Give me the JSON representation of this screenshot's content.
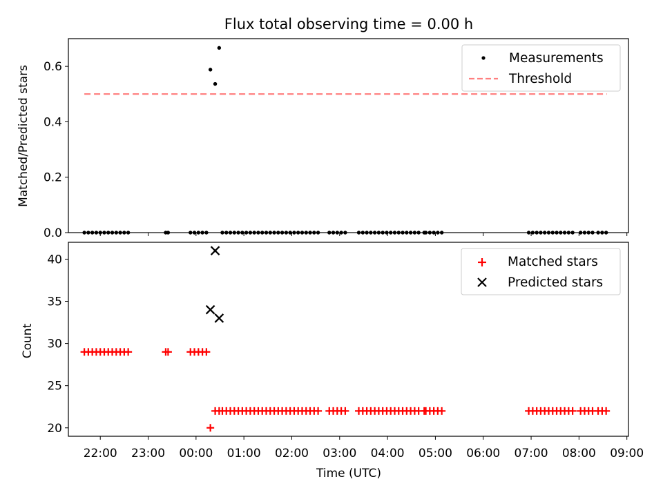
{
  "figure": {
    "title": "Flux total observing time = 0.00 h"
  },
  "chart_data": [
    {
      "type": "scatter",
      "title": "Flux total observing time = 0.00 h",
      "xlabel": "",
      "ylabel": "Matched/Predicted stars",
      "xlim": [
        "21:20",
        "09:02"
      ],
      "ylim": [
        0,
        0.7
      ],
      "yticks": [
        0.0,
        0.2,
        0.4,
        0.6
      ],
      "ytick_labels": [
        "0.0",
        "0.2",
        "0.4",
        "0.6"
      ],
      "legend_position": "top-right",
      "series": [
        {
          "name": "Measurements",
          "marker": "dot",
          "color": "#000000",
          "points": [
            [
              "21:40",
              0
            ],
            [
              "21:45",
              0
            ],
            [
              "21:50",
              0
            ],
            [
              "21:55",
              0
            ],
            [
              "22:00",
              0
            ],
            [
              "22:05",
              0
            ],
            [
              "22:10",
              0
            ],
            [
              "22:15",
              0
            ],
            [
              "22:20",
              0
            ],
            [
              "22:25",
              0
            ],
            [
              "22:30",
              0
            ],
            [
              "22:35",
              0
            ],
            [
              "23:22",
              0
            ],
            [
              "23:25",
              0
            ],
            [
              "23:53",
              0
            ],
            [
              "23:58",
              0
            ],
            [
              "00:03",
              0
            ],
            [
              "00:08",
              0
            ],
            [
              "00:13",
              0
            ],
            [
              "00:18",
              0.5882
            ],
            [
              "00:24",
              0.5366
            ],
            [
              "00:29",
              0.6667
            ],
            [
              "00:33",
              0
            ],
            [
              "00:38",
              0
            ],
            [
              "00:43",
              0
            ],
            [
              "00:48",
              0
            ],
            [
              "00:53",
              0
            ],
            [
              "00:58",
              0
            ],
            [
              "01:03",
              0
            ],
            [
              "01:08",
              0
            ],
            [
              "01:13",
              0
            ],
            [
              "01:18",
              0
            ],
            [
              "01:23",
              0
            ],
            [
              "01:28",
              0
            ],
            [
              "01:33",
              0
            ],
            [
              "01:38",
              0
            ],
            [
              "01:43",
              0
            ],
            [
              "01:48",
              0
            ],
            [
              "01:53",
              0
            ],
            [
              "01:58",
              0
            ],
            [
              "02:03",
              0
            ],
            [
              "02:08",
              0
            ],
            [
              "02:13",
              0
            ],
            [
              "02:18",
              0
            ],
            [
              "02:23",
              0
            ],
            [
              "02:28",
              0
            ],
            [
              "02:33",
              0
            ],
            [
              "02:47",
              0
            ],
            [
              "02:52",
              0
            ],
            [
              "02:57",
              0
            ],
            [
              "03:02",
              0
            ],
            [
              "03:07",
              0
            ],
            [
              "03:24",
              0
            ],
            [
              "03:29",
              0
            ],
            [
              "03:34",
              0
            ],
            [
              "03:39",
              0
            ],
            [
              "03:44",
              0
            ],
            [
              "03:49",
              0
            ],
            [
              "03:54",
              0
            ],
            [
              "03:59",
              0
            ],
            [
              "04:04",
              0
            ],
            [
              "04:09",
              0
            ],
            [
              "04:14",
              0
            ],
            [
              "04:19",
              0
            ],
            [
              "04:24",
              0
            ],
            [
              "04:29",
              0
            ],
            [
              "04:34",
              0
            ],
            [
              "04:39",
              0
            ],
            [
              "04:46",
              0
            ],
            [
              "04:48",
              0
            ],
            [
              "04:53",
              0
            ],
            [
              "04:58",
              0
            ],
            [
              "05:03",
              0
            ],
            [
              "05:08",
              0
            ],
            [
              "06:57",
              0
            ],
            [
              "07:02",
              0
            ],
            [
              "07:07",
              0
            ],
            [
              "07:12",
              0
            ],
            [
              "07:17",
              0
            ],
            [
              "07:22",
              0
            ],
            [
              "07:27",
              0
            ],
            [
              "07:32",
              0
            ],
            [
              "07:37",
              0
            ],
            [
              "07:42",
              0
            ],
            [
              "07:47",
              0
            ],
            [
              "07:52",
              0
            ],
            [
              "08:02",
              0
            ],
            [
              "08:07",
              0
            ],
            [
              "08:12",
              0
            ],
            [
              "08:17",
              0
            ],
            [
              "08:24",
              0
            ],
            [
              "08:29",
              0
            ],
            [
              "08:34",
              0
            ]
          ]
        },
        {
          "name": "Threshold",
          "line_style": "dashed",
          "color": "#ff7f7f",
          "points": [
            [
              "21:40",
              0.5
            ],
            [
              "08:35",
              0.5
            ]
          ]
        }
      ]
    },
    {
      "type": "scatter",
      "title": "",
      "xlabel": "Time (UTC)",
      "ylabel": "Count",
      "xlim": [
        "21:20",
        "09:02"
      ],
      "ylim": [
        19,
        42
      ],
      "yticks": [
        20,
        25,
        30,
        35,
        40
      ],
      "ytick_labels": [
        "20",
        "25",
        "30",
        "35",
        "40"
      ],
      "xticks": [
        "22:00",
        "23:00",
        "00:00",
        "01:00",
        "02:00",
        "03:00",
        "04:00",
        "05:00",
        "06:00",
        "07:00",
        "08:00",
        "09:00"
      ],
      "xtick_labels": [
        "22:00",
        "23:00",
        "00:00",
        "01:00",
        "02:00",
        "03:00",
        "04:00",
        "05:00",
        "06:00",
        "07:00",
        "08:00",
        "09:00"
      ],
      "legend_position": "top-right",
      "series": [
        {
          "name": "Matched stars",
          "marker": "plus",
          "color": "#ff0000",
          "points": [
            [
              "21:40",
              29
            ],
            [
              "21:45",
              29
            ],
            [
              "21:50",
              29
            ],
            [
              "21:55",
              29
            ],
            [
              "22:00",
              29
            ],
            [
              "22:05",
              29
            ],
            [
              "22:10",
              29
            ],
            [
              "22:15",
              29
            ],
            [
              "22:20",
              29
            ],
            [
              "22:25",
              29
            ],
            [
              "22:30",
              29
            ],
            [
              "22:35",
              29
            ],
            [
              "23:22",
              29
            ],
            [
              "23:25",
              29
            ],
            [
              "23:53",
              29
            ],
            [
              "23:58",
              29
            ],
            [
              "00:03",
              29
            ],
            [
              "00:08",
              29
            ],
            [
              "00:13",
              29
            ],
            [
              "00:18",
              20
            ],
            [
              "00:24",
              22
            ],
            [
              "00:29",
              22
            ],
            [
              "00:33",
              22
            ],
            [
              "00:38",
              22
            ],
            [
              "00:43",
              22
            ],
            [
              "00:48",
              22
            ],
            [
              "00:53",
              22
            ],
            [
              "00:58",
              22
            ],
            [
              "01:03",
              22
            ],
            [
              "01:08",
              22
            ],
            [
              "01:13",
              22
            ],
            [
              "01:18",
              22
            ],
            [
              "01:23",
              22
            ],
            [
              "01:28",
              22
            ],
            [
              "01:33",
              22
            ],
            [
              "01:38",
              22
            ],
            [
              "01:43",
              22
            ],
            [
              "01:48",
              22
            ],
            [
              "01:53",
              22
            ],
            [
              "01:58",
              22
            ],
            [
              "02:03",
              22
            ],
            [
              "02:08",
              22
            ],
            [
              "02:13",
              22
            ],
            [
              "02:18",
              22
            ],
            [
              "02:23",
              22
            ],
            [
              "02:28",
              22
            ],
            [
              "02:33",
              22
            ],
            [
              "02:47",
              22
            ],
            [
              "02:52",
              22
            ],
            [
              "02:57",
              22
            ],
            [
              "03:02",
              22
            ],
            [
              "03:07",
              22
            ],
            [
              "03:24",
              22
            ],
            [
              "03:29",
              22
            ],
            [
              "03:34",
              22
            ],
            [
              "03:39",
              22
            ],
            [
              "03:44",
              22
            ],
            [
              "03:49",
              22
            ],
            [
              "03:54",
              22
            ],
            [
              "03:59",
              22
            ],
            [
              "04:04",
              22
            ],
            [
              "04:09",
              22
            ],
            [
              "04:14",
              22
            ],
            [
              "04:19",
              22
            ],
            [
              "04:24",
              22
            ],
            [
              "04:29",
              22
            ],
            [
              "04:34",
              22
            ],
            [
              "04:39",
              22
            ],
            [
              "04:46",
              22
            ],
            [
              "04:48",
              22
            ],
            [
              "04:53",
              22
            ],
            [
              "04:58",
              22
            ],
            [
              "05:03",
              22
            ],
            [
              "05:08",
              22
            ],
            [
              "06:57",
              22
            ],
            [
              "07:02",
              22
            ],
            [
              "07:07",
              22
            ],
            [
              "07:12",
              22
            ],
            [
              "07:17",
              22
            ],
            [
              "07:22",
              22
            ],
            [
              "07:27",
              22
            ],
            [
              "07:32",
              22
            ],
            [
              "07:37",
              22
            ],
            [
              "07:42",
              22
            ],
            [
              "07:47",
              22
            ],
            [
              "07:52",
              22
            ],
            [
              "08:02",
              22
            ],
            [
              "08:07",
              22
            ],
            [
              "08:12",
              22
            ],
            [
              "08:17",
              22
            ],
            [
              "08:24",
              22
            ],
            [
              "08:29",
              22
            ],
            [
              "08:34",
              22
            ]
          ]
        },
        {
          "name": "Predicted stars",
          "marker": "x",
          "color": "#000000",
          "points": [
            [
              "00:18",
              34
            ],
            [
              "00:24",
              41
            ],
            [
              "00:29",
              33
            ]
          ]
        }
      ]
    }
  ]
}
